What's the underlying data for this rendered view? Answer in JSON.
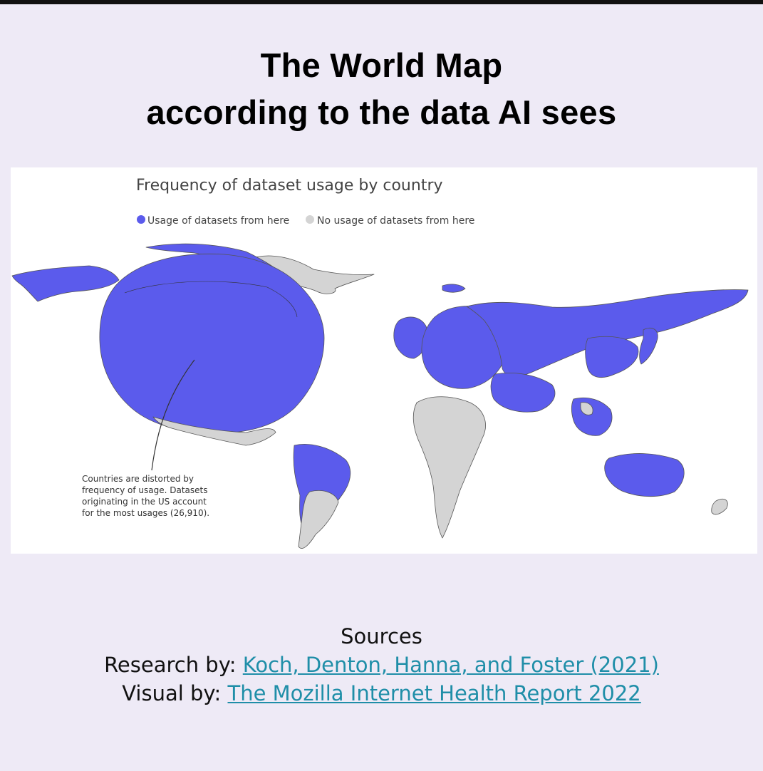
{
  "header": {
    "title_line1": "The World Map",
    "title_line2": "according to the data AI sees"
  },
  "map": {
    "title": "Frequency of dataset usage by country",
    "legend": {
      "used_label": "Usage of datasets from here",
      "unused_label": "No usage of datasets from here",
      "used_color": "#5b5bec",
      "unused_color": "#d4d4d4"
    },
    "annotation": {
      "line1": "Countries are distorted by",
      "line2": "frequency of usage. Datasets",
      "line3": "originating in the US account",
      "line4": "for the most usages (26,910)."
    }
  },
  "sources": {
    "heading": "Sources",
    "research_prefix": "Research by: ",
    "research_link": "Koch, Denton, Hanna, and Foster (2021)",
    "visual_prefix": "Visual by: ",
    "visual_link": "The Mozilla Internet Health Report 2022"
  }
}
